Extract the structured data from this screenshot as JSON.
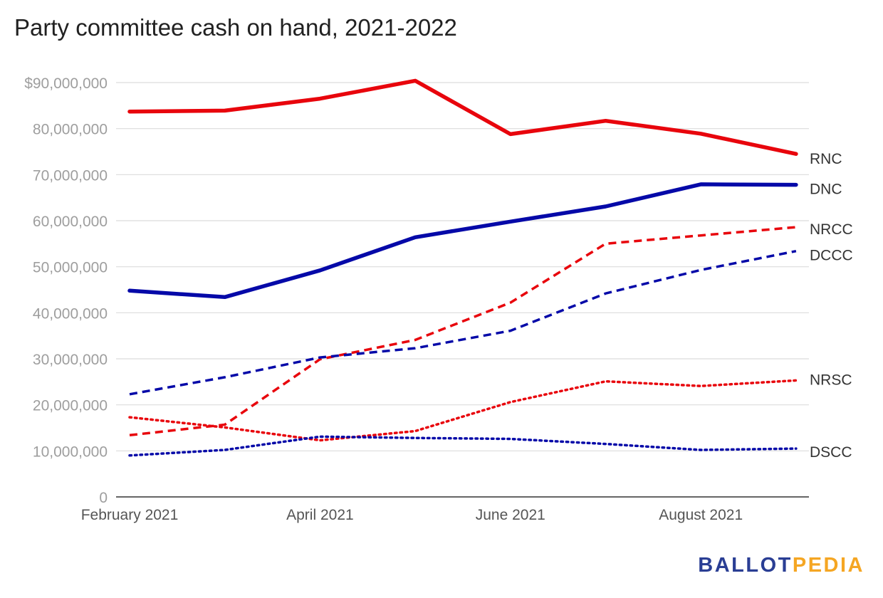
{
  "title": "Party committee cash on hand, 2021-2022",
  "brand": {
    "part1": "BALLOT",
    "part2": "PEDIA",
    "colors": {
      "ballot": "#2a3e94",
      "pedia": "#f5a623"
    }
  },
  "chart_data": {
    "type": "line",
    "title": "Party committee cash on hand, 2021-2022",
    "xlabel": "",
    "ylabel": "",
    "x": [
      "2021-02",
      "2021-03",
      "2021-04",
      "2021-05",
      "2021-06",
      "2021-07",
      "2021-08",
      "2021-09"
    ],
    "x_tick_labels": [
      "February 2021",
      "April 2021",
      "June 2021",
      "August 2021"
    ],
    "x_tick_indices": [
      0,
      2,
      4,
      6
    ],
    "ylim": [
      0,
      90000000
    ],
    "y_ticks": [
      0,
      10000000,
      20000000,
      30000000,
      40000000,
      50000000,
      60000000,
      70000000,
      80000000,
      90000000
    ],
    "y_tick_labels": [
      "0",
      "10,000,000",
      "20,000,000",
      "30,000,000",
      "40,000,000",
      "50,000,000",
      "60,000,000",
      "70,000,000",
      "80,000,000",
      "$90,000,000"
    ],
    "grid": true,
    "legend": "direct labels at right end of lines",
    "series": [
      {
        "name": "RNC",
        "color": "#e8050c",
        "style": "solid",
        "values": [
          83700000,
          83900000,
          86500000,
          90400000,
          78800000,
          81700000,
          78900000,
          74500000
        ]
      },
      {
        "name": "DNC",
        "color": "#0509a8",
        "style": "solid",
        "values": [
          44800000,
          43400000,
          49200000,
          56400000,
          59800000,
          63100000,
          67900000,
          67800000
        ]
      },
      {
        "name": "NRCC",
        "color": "#e8050c",
        "style": "dashed",
        "values": [
          13400000,
          15700000,
          29900000,
          34100000,
          42200000,
          55000000,
          56800000,
          58600000
        ]
      },
      {
        "name": "DCCC",
        "color": "#0509a8",
        "style": "dashed",
        "values": [
          22300000,
          26000000,
          30300000,
          32300000,
          36100000,
          44200000,
          49300000,
          53400000
        ]
      },
      {
        "name": "NRSC",
        "color": "#e8050c",
        "style": "dotted",
        "values": [
          17300000,
          15100000,
          12300000,
          14300000,
          20600000,
          25100000,
          24100000,
          25300000
        ]
      },
      {
        "name": "DSCC",
        "color": "#0509a8",
        "style": "dotted",
        "values": [
          9000000,
          10200000,
          13100000,
          12800000,
          12600000,
          11500000,
          10200000,
          10500000
        ]
      }
    ]
  }
}
